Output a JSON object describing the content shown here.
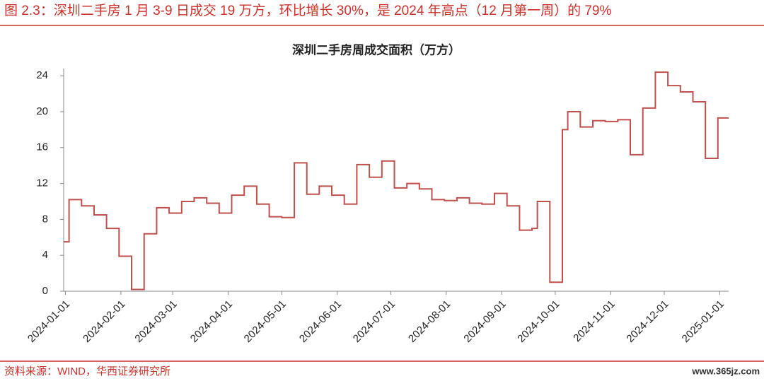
{
  "header": {
    "title": "图 2.3：深圳二手房 1 月 3-9 日成交 19 万方，环比增长 30%，是 2024 年高点（12 月第一周）的 79%"
  },
  "chart_data": {
    "type": "line",
    "title": "深圳二手房周成交面积（万方）",
    "step": true,
    "x": [
      "2023-12-31",
      "2024-01-03",
      "2024-01-10",
      "2024-01-17",
      "2024-01-24",
      "2024-01-31",
      "2024-02-07",
      "2024-02-14",
      "2024-02-21",
      "2024-02-28",
      "2024-03-06",
      "2024-03-13",
      "2024-03-20",
      "2024-03-27",
      "2024-04-03",
      "2024-04-10",
      "2024-04-17",
      "2024-04-24",
      "2024-05-01",
      "2024-05-08",
      "2024-05-15",
      "2024-05-22",
      "2024-05-29",
      "2024-06-05",
      "2024-06-12",
      "2024-06-19",
      "2024-06-26",
      "2024-07-03",
      "2024-07-10",
      "2024-07-17",
      "2024-07-24",
      "2024-07-31",
      "2024-08-07",
      "2024-08-14",
      "2024-08-21",
      "2024-08-28",
      "2024-09-04",
      "2024-09-11",
      "2024-09-18",
      "2024-09-21",
      "2024-09-28",
      "2024-10-05",
      "2024-10-08",
      "2024-10-15",
      "2024-10-22",
      "2024-10-29",
      "2024-11-05",
      "2024-11-12",
      "2024-11-19",
      "2024-11-26",
      "2024-12-03",
      "2024-12-10",
      "2024-12-17",
      "2024-12-24",
      "2024-12-31"
    ],
    "series": [
      {
        "name": "深圳二手房周成交面积",
        "color": "#c0504d",
        "values": [
          5.5,
          10.2,
          9.5,
          8.5,
          7.0,
          3.9,
          0.2,
          6.4,
          9.3,
          8.7,
          10.0,
          10.4,
          9.8,
          8.7,
          10.7,
          11.7,
          9.7,
          8.3,
          8.2,
          14.3,
          10.8,
          11.7,
          10.7,
          9.7,
          14.1,
          12.7,
          14.5,
          11.5,
          12.0,
          11.4,
          10.2,
          10.1,
          10.4,
          9.8,
          9.7,
          10.9,
          9.5,
          6.8,
          7.0,
          10.0,
          1.0,
          18.0,
          20.0,
          18.3,
          19.0,
          18.9,
          19.1,
          15.2,
          20.4,
          24.4,
          22.9,
          22.2,
          21.1,
          14.8,
          19.3
        ]
      }
    ],
    "xlim": [
      "2023-12-31",
      "2025-01-06"
    ],
    "xticks": [
      "2024-01-01",
      "2024-02-01",
      "2024-03-01",
      "2024-04-01",
      "2024-05-01",
      "2024-06-01",
      "2024-07-01",
      "2024-08-01",
      "2024-09-01",
      "2024-10-01",
      "2024-11-01",
      "2024-12-01",
      "2025-01-01"
    ],
    "ylim": [
      0,
      24.8
    ],
    "yticks": [
      0,
      4,
      8,
      12,
      16,
      20,
      24
    ],
    "grid": false
  },
  "footer": {
    "source": "资料来源：WIND，华西证券研究所",
    "watermark": "www.365jz.com"
  }
}
